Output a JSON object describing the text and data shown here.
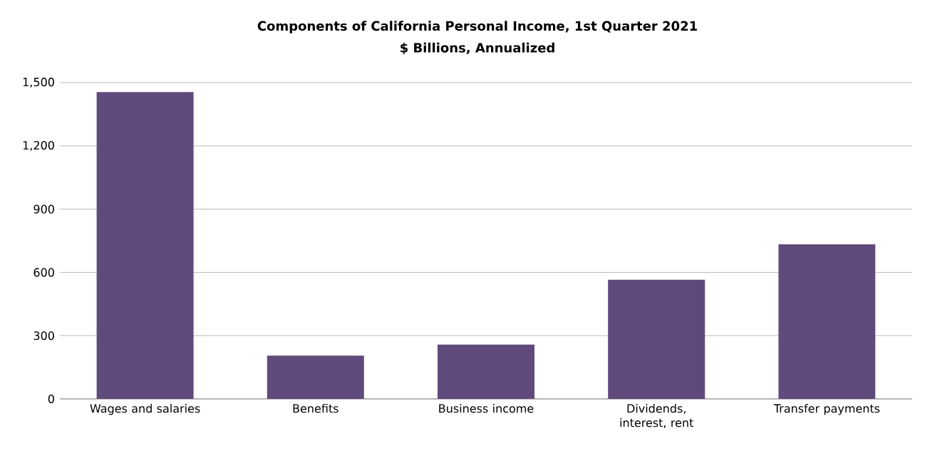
{
  "chart_data": {
    "type": "bar",
    "title": "Components of California Personal Income, 1st Quarter 2021",
    "subtitle": "$ Billions, Annualized",
    "categories": [
      "Wages and salaries",
      "Benefits",
      "Business income",
      "Dividends, interest, rent",
      "Transfer payments"
    ],
    "values": [
      1455,
      205,
      258,
      565,
      733
    ],
    "color": "#604a7b",
    "ylim": [
      0,
      1500
    ],
    "yticks": [
      {
        "value": 0,
        "label": "0"
      },
      {
        "value": 300,
        "label": "300"
      },
      {
        "value": 600,
        "label": "600"
      },
      {
        "value": 900,
        "label": "900"
      },
      {
        "value": 1200,
        "label": "1,200"
      },
      {
        "value": 1500,
        "label": "1,500"
      }
    ],
    "grid": "y"
  }
}
